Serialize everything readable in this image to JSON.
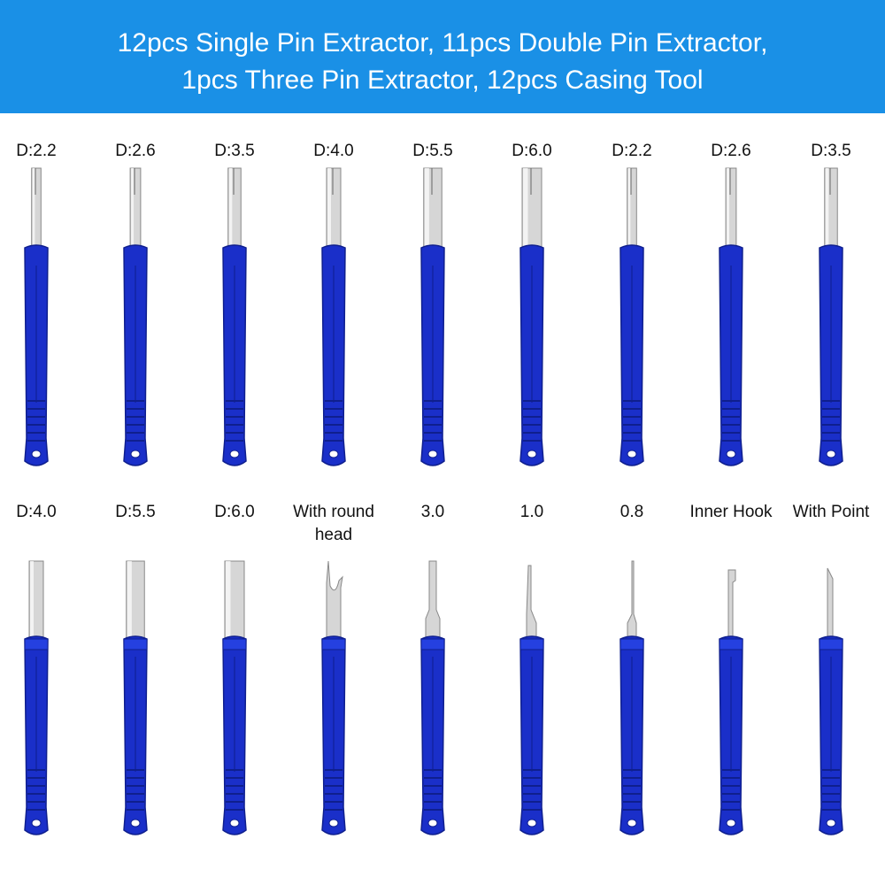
{
  "banner": {
    "line1": "12pcs Single Pin Extractor, 11pcs Double Pin Extractor,",
    "line2": "1pcs Three Pin Extractor, 12pcs Casing Tool",
    "color": "#1a90e6"
  },
  "colors": {
    "handle": "#1a2fc9",
    "handle_dark": "#0f1f8e",
    "metal": "#d6d6d6"
  },
  "row1": [
    {
      "label": "D:2.2",
      "tip": "tube",
      "size": 2.2
    },
    {
      "label": "D:2.6",
      "tip": "tube",
      "size": 2.6
    },
    {
      "label": "D:3.5",
      "tip": "tube",
      "size": 3.5
    },
    {
      "label": "D:4.0",
      "tip": "tube",
      "size": 4.0
    },
    {
      "label": "D:5.5",
      "tip": "tube",
      "size": 5.5
    },
    {
      "label": "D:6.0",
      "tip": "tube",
      "size": 6.0
    },
    {
      "label": "D:2.2",
      "tip": "tube",
      "size": 2.2
    },
    {
      "label": "D:2.6",
      "tip": "tube",
      "size": 2.6
    },
    {
      "label": "D:3.5",
      "tip": "tube",
      "size": 3.5
    }
  ],
  "row2": [
    {
      "label": "D:4.0",
      "tip": "tube",
      "size": 4.0
    },
    {
      "label": "D:5.5",
      "tip": "tube",
      "size": 5.5
    },
    {
      "label": "D:6.0",
      "tip": "tube",
      "size": 6.0
    },
    {
      "label": "With round head",
      "tip": "fork"
    },
    {
      "label": "3.0",
      "tip": "flat",
      "size": 3.0
    },
    {
      "label": "1.0",
      "tip": "blade",
      "size": 1.0
    },
    {
      "label": "0.8",
      "tip": "needle",
      "size": 0.8
    },
    {
      "label": "Inner Hook",
      "tip": "hook"
    },
    {
      "label": "With Point",
      "tip": "point"
    }
  ]
}
